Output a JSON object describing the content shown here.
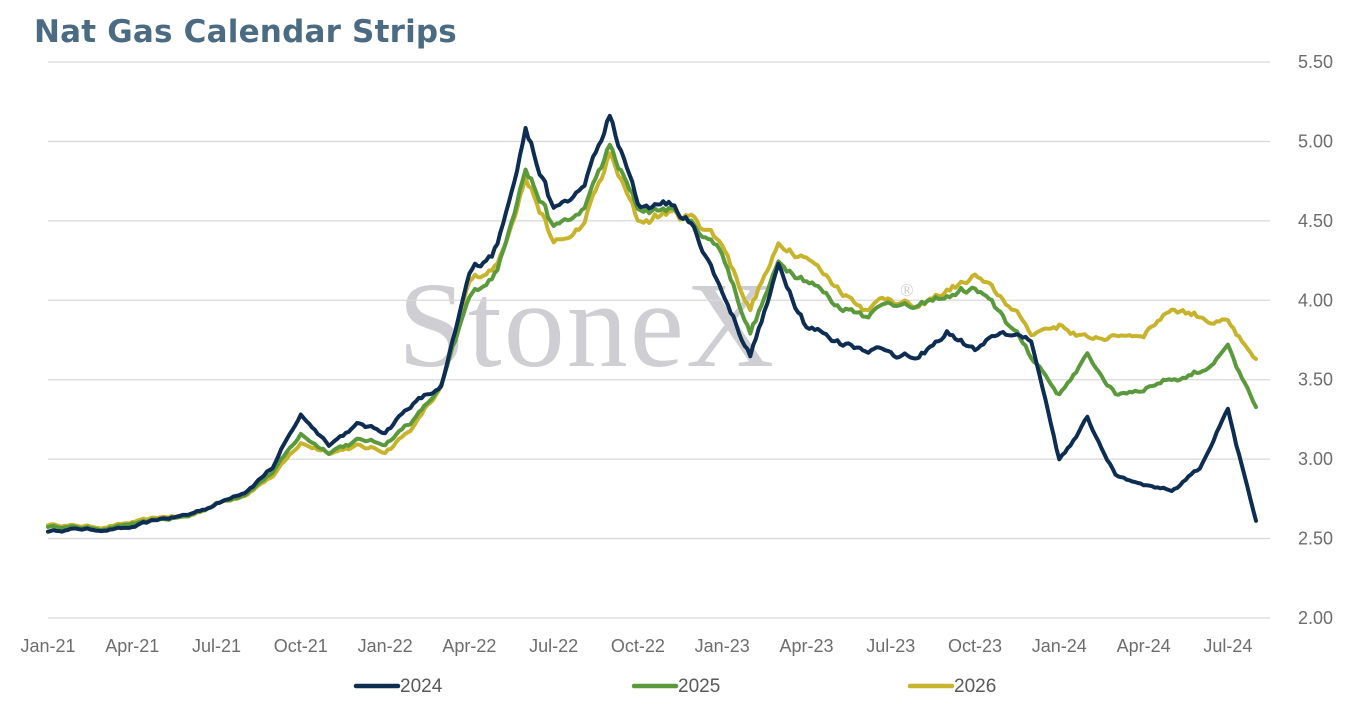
{
  "chart_data": {
    "type": "line",
    "title": "Nat Gas Calendar Strips",
    "watermark": "StoneX",
    "watermark_mark": "®",
    "x_tick_labels": [
      "Jan-21",
      "Apr-21",
      "Jul-21",
      "Oct-21",
      "Jan-22",
      "Apr-22",
      "Jul-22",
      "Oct-22",
      "Jan-23",
      "Apr-23",
      "Jul-23",
      "Oct-23",
      "Jan-24",
      "Apr-24",
      "Jul-24"
    ],
    "y_tick_labels": [
      "5.50",
      "5.00",
      "4.50",
      "4.00",
      "3.50",
      "3.00",
      "2.50",
      "2.00"
    ],
    "ylim": [
      2.0,
      5.5
    ],
    "grid": "horizontal",
    "y_axis_side": "right",
    "legend_position": "bottom",
    "x": [
      "2021-01",
      "2021-02",
      "2021-03",
      "2021-04",
      "2021-05",
      "2021-06",
      "2021-07",
      "2021-08",
      "2021-09",
      "2021-10",
      "2021-11",
      "2021-12",
      "2022-01",
      "2022-02",
      "2022-03",
      "2022-04",
      "2022-05",
      "2022-06",
      "2022-07",
      "2022-08",
      "2022-09",
      "2022-10",
      "2022-11",
      "2022-12",
      "2023-01",
      "2023-02",
      "2023-03",
      "2023-04",
      "2023-05",
      "2023-06",
      "2023-07",
      "2023-08",
      "2023-09",
      "2023-10",
      "2023-11",
      "2023-12",
      "2024-01",
      "2024-02",
      "2024-03",
      "2024-04",
      "2024-05",
      "2024-06",
      "2024-07",
      "2024-08"
    ],
    "series": [
      {
        "name": "2024",
        "color": "#0d2d52",
        "values": [
          2.55,
          2.56,
          2.55,
          2.57,
          2.62,
          2.65,
          2.72,
          2.8,
          2.95,
          3.28,
          3.1,
          3.22,
          3.18,
          3.35,
          3.45,
          4.15,
          4.35,
          5.1,
          4.55,
          4.7,
          5.15,
          4.6,
          4.62,
          4.45,
          4.05,
          3.65,
          4.2,
          3.85,
          3.75,
          3.7,
          3.68,
          3.62,
          3.8,
          3.68,
          3.8,
          3.75,
          3.0,
          3.25,
          2.9,
          2.85,
          2.8,
          2.95,
          3.3,
          2.6
        ]
      },
      {
        "name": "2025",
        "color": "#5a9a3c",
        "values": [
          2.58,
          2.57,
          2.56,
          2.59,
          2.62,
          2.64,
          2.72,
          2.78,
          2.92,
          3.15,
          3.05,
          3.12,
          3.1,
          3.25,
          3.45,
          4.0,
          4.2,
          4.85,
          4.45,
          4.55,
          4.95,
          4.55,
          4.58,
          4.48,
          4.3,
          3.8,
          4.22,
          4.15,
          3.98,
          3.92,
          4.0,
          3.95,
          4.02,
          4.08,
          3.9,
          3.65,
          3.4,
          3.65,
          3.4,
          3.45,
          3.5,
          3.55,
          3.7,
          3.3
        ]
      },
      {
        "name": "2026",
        "color": "#c7b42c",
        "values": [
          2.59,
          2.58,
          2.57,
          2.6,
          2.63,
          2.64,
          2.72,
          2.78,
          2.9,
          3.1,
          3.05,
          3.08,
          3.05,
          3.2,
          3.45,
          4.1,
          4.22,
          4.8,
          4.35,
          4.45,
          4.9,
          4.5,
          4.55,
          4.52,
          4.35,
          3.95,
          4.35,
          4.3,
          4.1,
          3.95,
          4.02,
          3.95,
          4.05,
          4.15,
          4.0,
          3.8,
          3.85,
          3.75,
          3.78,
          3.8,
          3.95,
          3.9,
          3.85,
          3.6
        ]
      }
    ]
  }
}
